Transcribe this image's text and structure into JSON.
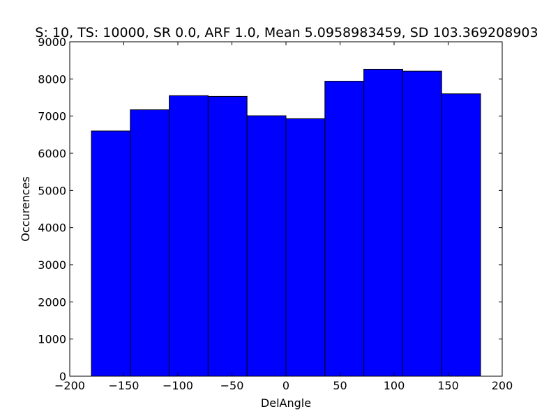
{
  "chart_data": {
    "type": "bar",
    "title": "S: 10, TS: 10000, SR 0.0, ARF 1.0, Mean 5.0958983459, SD 103.369208903",
    "xlabel": "DelAngle",
    "ylabel": "Occurences",
    "xlim": [
      -200,
      200
    ],
    "ylim": [
      0,
      9000
    ],
    "xticks": [
      -200,
      -150,
      -100,
      -50,
      0,
      50,
      100,
      150,
      200
    ],
    "xtick_labels": [
      "−200",
      "−150",
      "−100",
      "−50",
      "0",
      "50",
      "100",
      "150",
      "200"
    ],
    "yticks": [
      0,
      1000,
      2000,
      3000,
      4000,
      5000,
      6000,
      7000,
      8000,
      9000
    ],
    "ytick_labels": [
      "0",
      "1000",
      "2000",
      "3000",
      "4000",
      "5000",
      "6000",
      "7000",
      "8000",
      "9000"
    ],
    "bins": [
      {
        "x0": -180,
        "x1": -144,
        "value": 6600
      },
      {
        "x0": -144,
        "x1": -108,
        "value": 7170
      },
      {
        "x0": -108,
        "x1": -72,
        "value": 7550
      },
      {
        "x0": -72,
        "x1": -36,
        "value": 7530
      },
      {
        "x0": -36,
        "x1": 0,
        "value": 7010
      },
      {
        "x0": 0,
        "x1": 36,
        "value": 6930
      },
      {
        "x0": 36,
        "x1": 72,
        "value": 7940
      },
      {
        "x0": 72,
        "x1": 108,
        "value": 8260
      },
      {
        "x0": 108,
        "x1": 144,
        "value": 8210
      },
      {
        "x0": 144,
        "x1": 180,
        "value": 7600
      }
    ],
    "bar_color": "#0000ff",
    "edge_color": "#000000",
    "grid": false,
    "legend": "none"
  }
}
